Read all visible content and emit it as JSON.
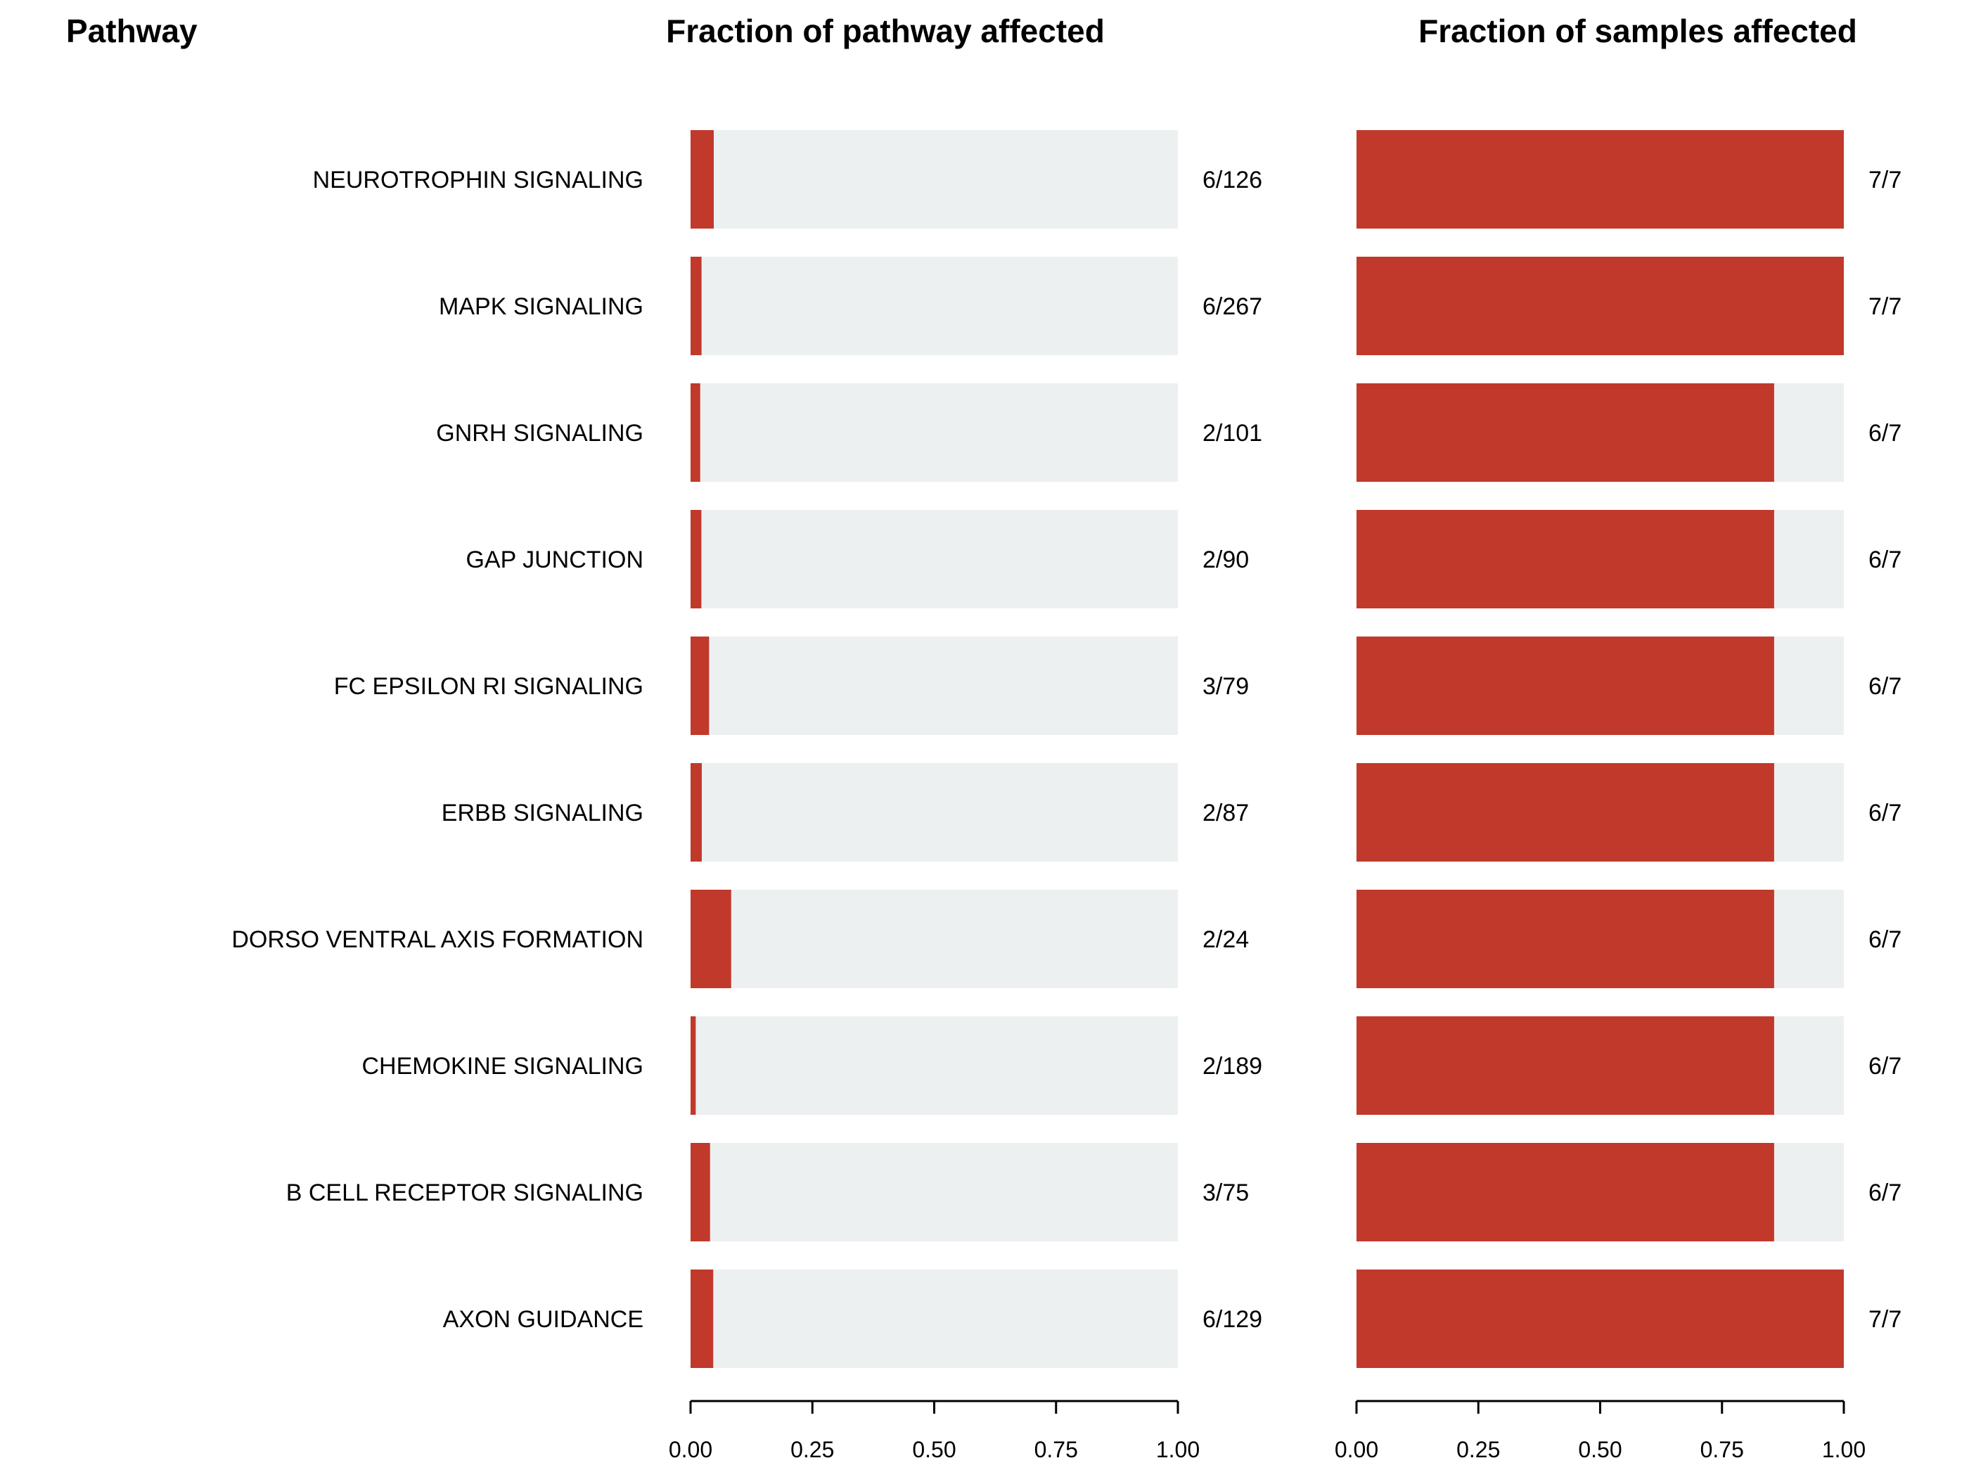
{
  "chart_data": [
    {
      "type": "bar",
      "orientation": "horizontal",
      "title": "Fraction of pathway affected",
      "row_header": "Pathway",
      "categories": [
        "NEUROTROPHIN SIGNALING",
        "MAPK SIGNALING",
        "GNRH SIGNALING",
        "GAP JUNCTION",
        "FC EPSILON RI SIGNALING",
        "ERBB SIGNALING",
        "DORSO VENTRAL AXIS FORMATION",
        "CHEMOKINE SIGNALING",
        "B CELL RECEPTOR SIGNALING",
        "AXON GUIDANCE"
      ],
      "values": [
        0.0476,
        0.0225,
        0.0198,
        0.0222,
        0.038,
        0.023,
        0.0833,
        0.0106,
        0.04,
        0.0465
      ],
      "ratio_labels": [
        "6/126",
        "6/267",
        "2/101",
        "2/90",
        "3/79",
        "2/87",
        "2/24",
        "2/189",
        "3/75",
        "6/129"
      ],
      "xlim": [
        0,
        1
      ],
      "ticks": [
        "0.00",
        "0.25",
        "0.50",
        "0.75",
        "1.00"
      ],
      "colors": {
        "bar": "#c0392b",
        "background": "#ecf0f1"
      }
    },
    {
      "type": "bar",
      "orientation": "horizontal",
      "title": "Fraction of samples affected",
      "categories": [
        "NEUROTROPHIN SIGNALING",
        "MAPK SIGNALING",
        "GNRH SIGNALING",
        "GAP JUNCTION",
        "FC EPSILON RI SIGNALING",
        "ERBB SIGNALING",
        "DORSO VENTRAL AXIS FORMATION",
        "CHEMOKINE SIGNALING",
        "B CELL RECEPTOR SIGNALING",
        "AXON GUIDANCE"
      ],
      "values": [
        1.0,
        1.0,
        0.857,
        0.857,
        0.857,
        0.857,
        0.857,
        0.857,
        0.857,
        1.0
      ],
      "ratio_labels": [
        "7/7",
        "7/7",
        "6/7",
        "6/7",
        "6/7",
        "6/7",
        "6/7",
        "6/7",
        "6/7",
        "7/7"
      ],
      "xlim": [
        0,
        1
      ],
      "ticks": [
        "0.00",
        "0.25",
        "0.50",
        "0.75",
        "1.00"
      ],
      "colors": {
        "bar": "#c0392b",
        "background": "#ecf0f1"
      }
    }
  ]
}
